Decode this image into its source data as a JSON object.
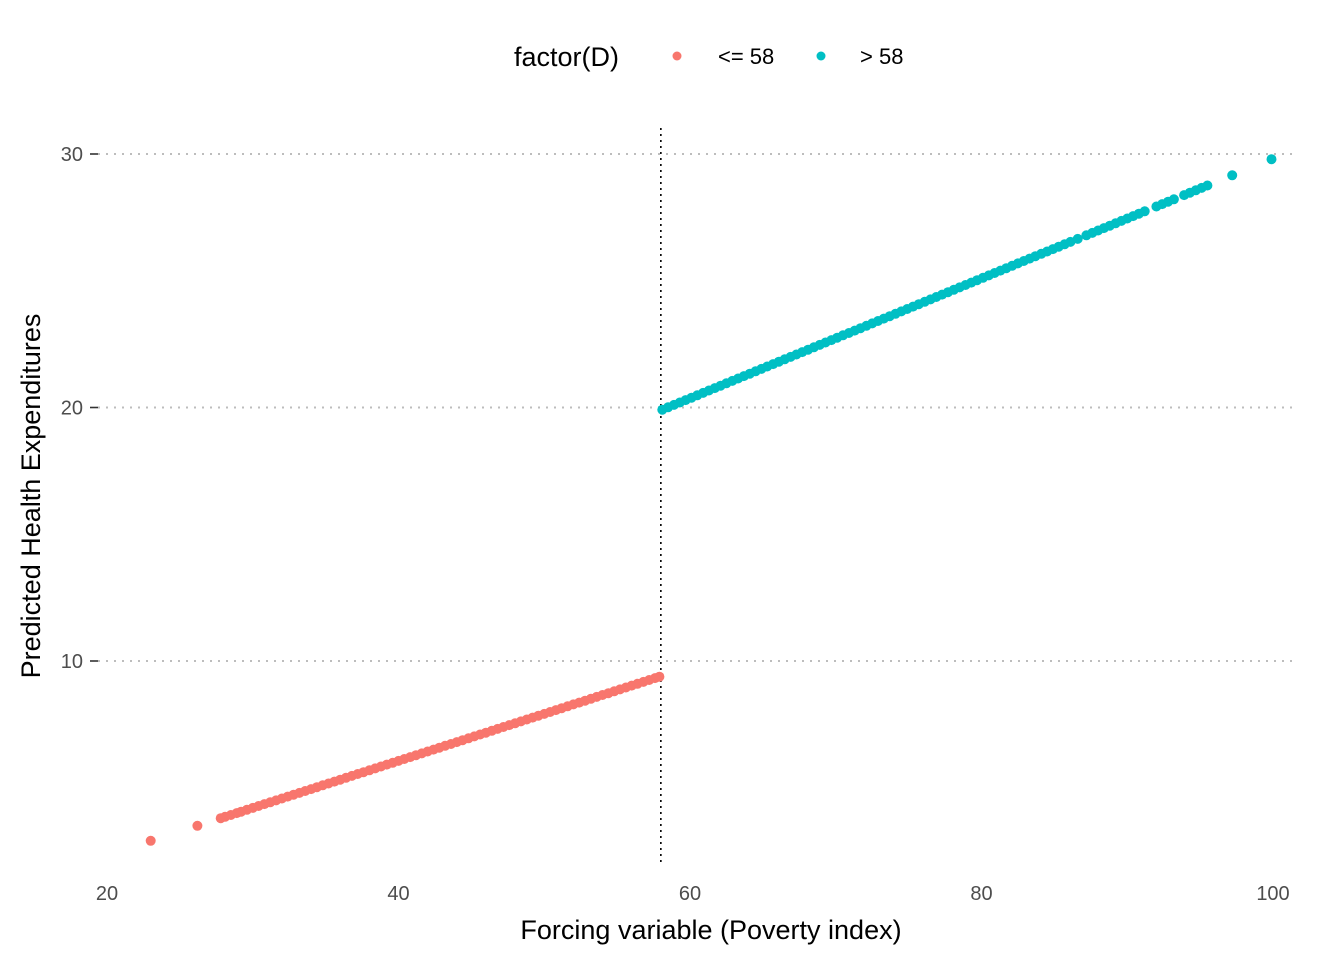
{
  "chart_data": {
    "type": "scatter",
    "title": "",
    "xlabel": "Forcing variable (Poverty index)",
    "ylabel": "Predicted Health Expenditures",
    "xlim": [
      19,
      103
    ],
    "ylim": [
      2,
      31
    ],
    "x_ticks": [
      20,
      40,
      60,
      80,
      100
    ],
    "y_ticks": [
      10,
      20,
      30
    ],
    "grid": "horizontal dotted major lines",
    "cutoff_line": {
      "x": 58,
      "style": "dotted",
      "color": "#000000"
    },
    "legend": {
      "title": "factor(D)",
      "position": "top",
      "entries": [
        {
          "label": "<= 58",
          "color": "#F8766D"
        },
        {
          "label": "> 58",
          "color": "#00BFC4"
        }
      ]
    },
    "series": [
      {
        "name": "<= 58",
        "color": "#F8766D",
        "fit": {
          "intercept": -1.36,
          "slope": 0.1855
        },
        "x": [
          23.0,
          26.2,
          27.8,
          28.1,
          28.5,
          28.9,
          29.2,
          29.6,
          30.0,
          30.4,
          30.8,
          31.2,
          31.6,
          32.0,
          32.4,
          32.8,
          33.2,
          33.6,
          34.0,
          34.4,
          34.8,
          35.2,
          35.6,
          36.0,
          36.4,
          36.8,
          37.2,
          37.6,
          38.0,
          38.4,
          38.8,
          39.2,
          39.6,
          40.0,
          40.4,
          40.8,
          41.2,
          41.6,
          42.0,
          42.4,
          42.8,
          43.2,
          43.6,
          44.0,
          44.4,
          44.8,
          45.2,
          45.6,
          46.0,
          46.4,
          46.8,
          47.2,
          47.6,
          48.0,
          48.4,
          48.8,
          49.2,
          49.6,
          50.0,
          50.4,
          50.8,
          51.2,
          51.6,
          52.0,
          52.4,
          52.8,
          53.2,
          53.6,
          54.0,
          54.4,
          54.8,
          55.2,
          55.6,
          56.0,
          56.4,
          56.8,
          57.2,
          57.6,
          57.9
        ]
      },
      {
        "name": "> 58",
        "color": "#00BFC4",
        "fit": {
          "intercept": 6.18,
          "slope": 0.2364
        },
        "x": [
          58.1,
          58.5,
          58.9,
          59.3,
          59.7,
          60.1,
          60.5,
          60.9,
          61.3,
          61.7,
          62.1,
          62.5,
          62.9,
          63.3,
          63.7,
          64.1,
          64.5,
          64.9,
          65.3,
          65.7,
          66.1,
          66.5,
          66.9,
          67.3,
          67.7,
          68.1,
          68.5,
          68.9,
          69.3,
          69.7,
          70.1,
          70.5,
          70.9,
          71.3,
          71.7,
          72.1,
          72.5,
          72.9,
          73.3,
          73.7,
          74.1,
          74.5,
          74.9,
          75.3,
          75.7,
          76.1,
          76.5,
          76.9,
          77.3,
          77.7,
          78.1,
          78.5,
          78.9,
          79.3,
          79.7,
          80.1,
          80.5,
          80.9,
          81.3,
          81.7,
          82.1,
          82.5,
          82.9,
          83.3,
          83.7,
          84.1,
          84.5,
          84.9,
          85.3,
          85.7,
          86.1,
          86.6,
          87.2,
          87.6,
          88.0,
          88.4,
          88.8,
          89.2,
          89.6,
          90.0,
          90.4,
          90.8,
          91.2,
          92.0,
          92.4,
          92.8,
          93.2,
          93.9,
          94.3,
          94.7,
          95.1,
          95.5,
          97.2,
          99.9
        ]
      }
    ]
  }
}
